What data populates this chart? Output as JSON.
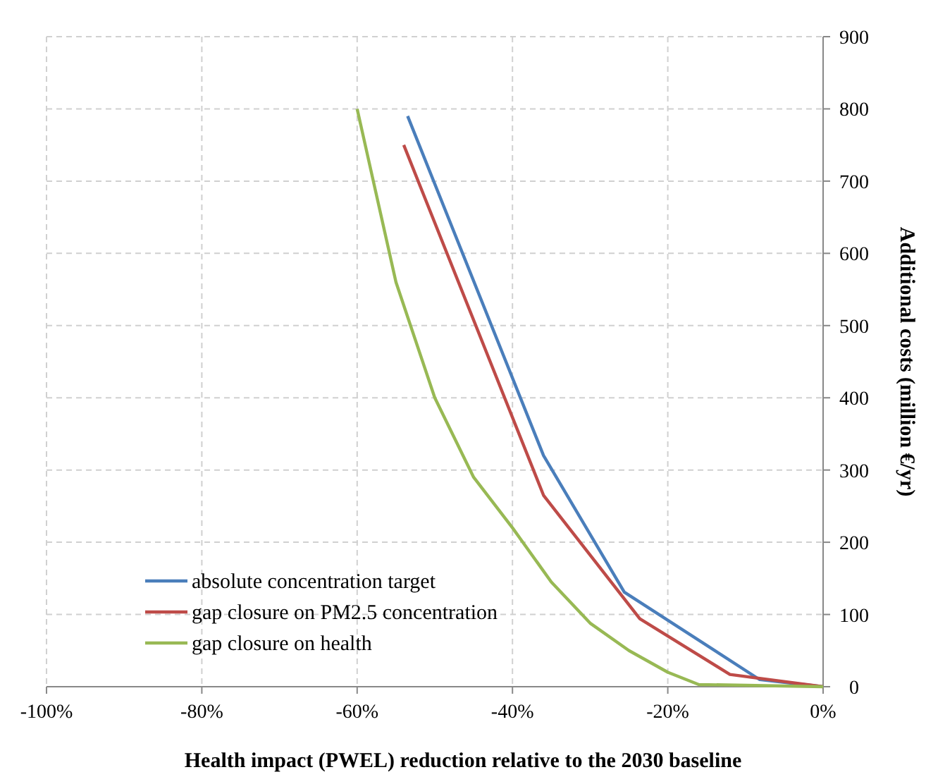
{
  "chart_data": {
    "type": "line",
    "xlabel": "Health impact (PWEL) reduction relative to the 2030 baseline",
    "ylabel": "Additional costs (million €/yr)",
    "xlim": [
      -100,
      0
    ],
    "xticks": [
      {
        "value": -100,
        "label": "-100%"
      },
      {
        "value": -80,
        "label": "-80%"
      },
      {
        "value": -60,
        "label": "-60%"
      },
      {
        "value": -40,
        "label": "-40%"
      },
      {
        "value": -20,
        "label": "-20%"
      },
      {
        "value": 0,
        "label": "0%"
      }
    ],
    "ylim": [
      0,
      900
    ],
    "yticks": [
      0,
      100,
      200,
      300,
      400,
      500,
      600,
      700,
      800,
      900
    ],
    "grid": true,
    "legend": "bottom left",
    "marker": "none",
    "line_style": "solid",
    "series": [
      {
        "name": "absolute concentration target",
        "color": "#4a7ebb",
        "x": [
          -53.5,
          -36,
          -25.6,
          -8.2,
          0
        ],
        "values": [
          790,
          320,
          131,
          10,
          0
        ]
      },
      {
        "name": "gap closure on PM2.5 concentration",
        "color": "#be4b48",
        "x": [
          -54,
          -36,
          -23.6,
          -12,
          0
        ],
        "values": [
          750,
          265,
          94,
          17,
          0
        ]
      },
      {
        "name": "gap closure on health",
        "color": "#98b954",
        "x": [
          -60,
          -55,
          -50,
          -45,
          -40,
          -35,
          -30,
          -25,
          -20,
          -16,
          -10,
          0
        ],
        "values": [
          800,
          560,
          400,
          290,
          220,
          145,
          88,
          50,
          20,
          3,
          2,
          0
        ]
      }
    ]
  }
}
